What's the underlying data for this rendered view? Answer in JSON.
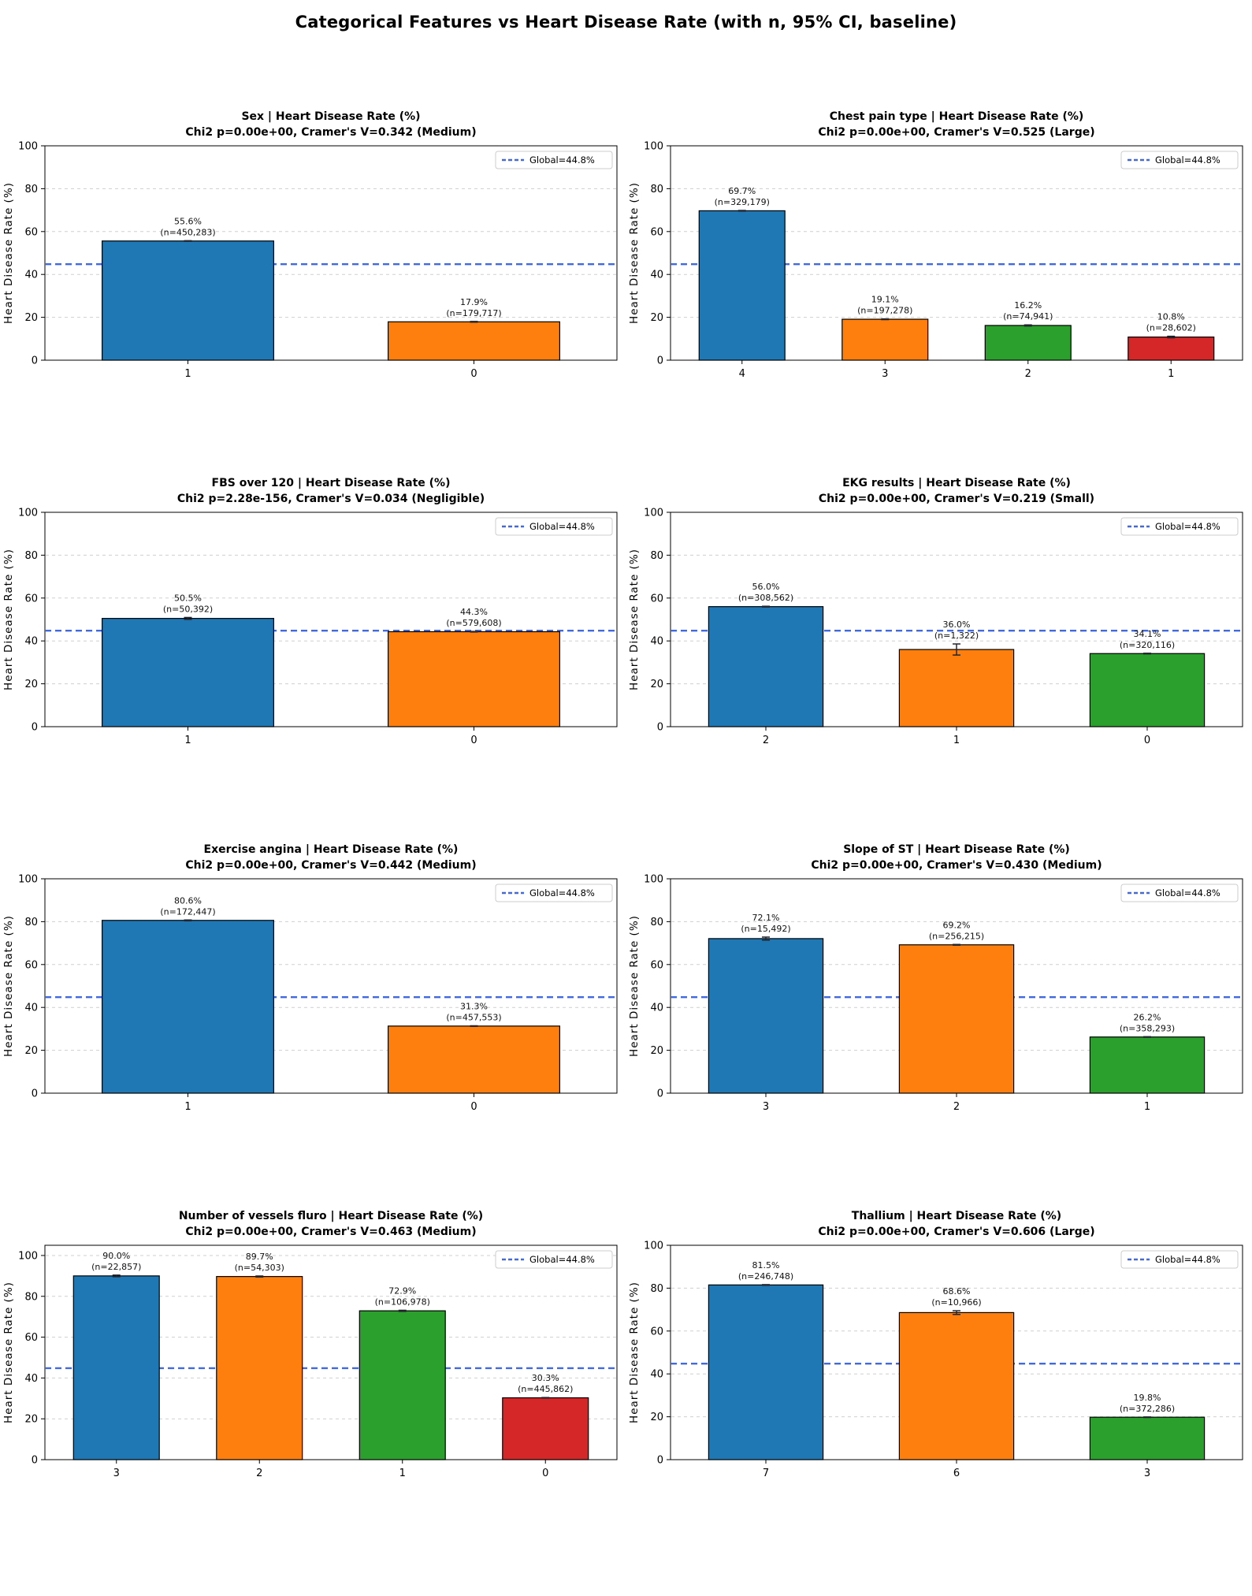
{
  "page_title": "Categorical Features vs Heart Disease Rate (with n, 95% CI, baseline)",
  "axis": {
    "ylabel": "Heart Disease Rate (%)",
    "yticks": [
      0,
      20,
      40,
      60,
      80,
      100
    ]
  },
  "baseline": {
    "value": 44.8,
    "legend_label": "Global=44.8%"
  },
  "colors": {
    "bars": [
      "#1f77b4",
      "#ff7f0e",
      "#2ca02c",
      "#d62728"
    ],
    "bar_edge": "#000000",
    "baseline_line": "#4169e1",
    "gridline": "#cfcfcf",
    "error_bar": "#23252e",
    "spine": "#000000",
    "legend_border": "#cccccc"
  },
  "chart_data": [
    {
      "type": "bar",
      "feature": "Sex",
      "title": "Sex | Heart Disease Rate (%)",
      "subtitle": "Chi2 p=0.00e+00, Cramer's V=0.342 (Medium)",
      "categories": [
        "1",
        "0"
      ],
      "values": [
        55.6,
        17.9
      ],
      "counts": [
        "450,283",
        "179,717"
      ],
      "ylabel": "Heart Disease Rate (%)",
      "ylim": [
        0,
        100
      ],
      "baseline": 44.8,
      "legend": "Global=44.8%"
    },
    {
      "type": "bar",
      "feature": "Chest pain type",
      "title": "Chest pain type | Heart Disease Rate (%)",
      "subtitle": "Chi2 p=0.00e+00, Cramer's V=0.525 (Large)",
      "categories": [
        "4",
        "3",
        "2",
        "1"
      ],
      "values": [
        69.7,
        19.1,
        16.2,
        10.8
      ],
      "counts": [
        "329,179",
        "197,278",
        "74,941",
        "28,602"
      ],
      "ylabel": "Heart Disease Rate (%)",
      "ylim": [
        0,
        100
      ],
      "baseline": 44.8,
      "legend": "Global=44.8%"
    },
    {
      "type": "bar",
      "feature": "FBS over 120",
      "title": "FBS over 120 | Heart Disease Rate (%)",
      "subtitle": "Chi2 p=2.28e-156, Cramer's V=0.034 (Negligible)",
      "categories": [
        "1",
        "0"
      ],
      "values": [
        50.5,
        44.3
      ],
      "counts": [
        "50,392",
        "579,608"
      ],
      "ylabel": "Heart Disease Rate (%)",
      "ylim": [
        0,
        100
      ],
      "baseline": 44.8,
      "legend": "Global=44.8%"
    },
    {
      "type": "bar",
      "feature": "EKG results",
      "title": "EKG results | Heart Disease Rate (%)",
      "subtitle": "Chi2 p=0.00e+00, Cramer's V=0.219 (Small)",
      "categories": [
        "2",
        "1",
        "0"
      ],
      "values": [
        56.0,
        36.0,
        34.1
      ],
      "counts": [
        "308,562",
        "1,322",
        "320,116"
      ],
      "ylabel": "Heart Disease Rate (%)",
      "ylim": [
        0,
        100
      ],
      "baseline": 44.8,
      "legend": "Global=44.8%"
    },
    {
      "type": "bar",
      "feature": "Exercise angina",
      "title": "Exercise angina | Heart Disease Rate (%)",
      "subtitle": "Chi2 p=0.00e+00, Cramer's V=0.442 (Medium)",
      "categories": [
        "1",
        "0"
      ],
      "values": [
        80.6,
        31.3
      ],
      "counts": [
        "172,447",
        "457,553"
      ],
      "ylabel": "Heart Disease Rate (%)",
      "ylim": [
        0,
        100
      ],
      "baseline": 44.8,
      "legend": "Global=44.8%"
    },
    {
      "type": "bar",
      "feature": "Slope of ST",
      "title": "Slope of ST | Heart Disease Rate (%)",
      "subtitle": "Chi2 p=0.00e+00, Cramer's V=0.430 (Medium)",
      "categories": [
        "3",
        "2",
        "1"
      ],
      "values": [
        72.1,
        69.2,
        26.2
      ],
      "counts": [
        "15,492",
        "256,215",
        "358,293"
      ],
      "ylabel": "Heart Disease Rate (%)",
      "ylim": [
        0,
        100
      ],
      "baseline": 44.8,
      "legend": "Global=44.8%"
    },
    {
      "type": "bar",
      "feature": "Number of vessels fluro",
      "title": "Number of vessels fluro | Heart Disease Rate (%)",
      "subtitle": "Chi2 p=0.00e+00, Cramer's V=0.463 (Medium)",
      "categories": [
        "3",
        "2",
        "1",
        "0"
      ],
      "values": [
        90.0,
        89.7,
        72.9,
        30.3
      ],
      "counts": [
        "22,857",
        "54,303",
        "106,978",
        "445,862"
      ],
      "ylabel": "Heart Disease Rate (%)",
      "ylim": [
        0,
        105
      ],
      "baseline": 44.8,
      "legend": "Global=44.8%"
    },
    {
      "type": "bar",
      "feature": "Thallium",
      "title": "Thallium | Heart Disease Rate (%)",
      "subtitle": "Chi2 p=0.00e+00, Cramer's V=0.606 (Large)",
      "categories": [
        "7",
        "6",
        "3"
      ],
      "values": [
        81.5,
        68.6,
        19.8
      ],
      "counts": [
        "246,748",
        "10,966",
        "372,286"
      ],
      "ylabel": "Heart Disease Rate (%)",
      "ylim": [
        0,
        100
      ],
      "baseline": 44.8,
      "legend": "Global=44.8%"
    }
  ]
}
